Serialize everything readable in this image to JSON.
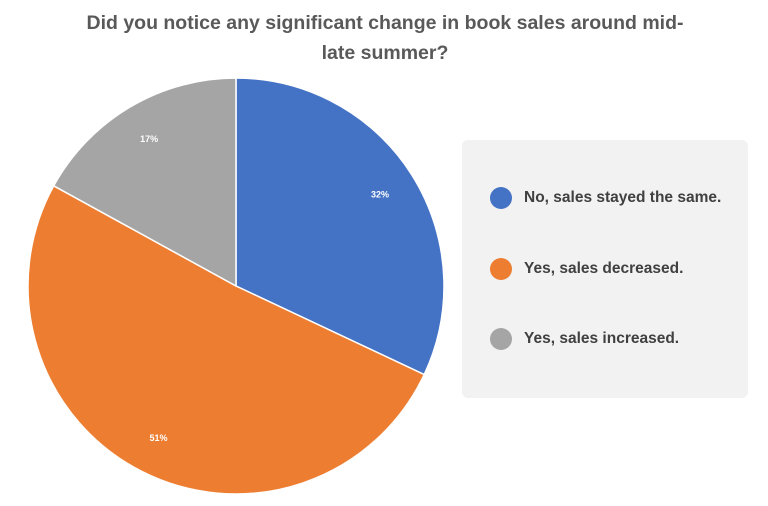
{
  "chart_data": {
    "type": "pie",
    "title_lines": [
      "Did you notice any significant change in book sales around mid-",
      "late summer?"
    ],
    "slices": [
      {
        "label": "No, sales stayed the same.",
        "value": 32,
        "display": "32%",
        "color": "#4472C4"
      },
      {
        "label": "Yes, sales decreased.",
        "value": 51,
        "display": "51%",
        "color": "#ED7D31"
      },
      {
        "label": "Yes, sales increased.",
        "value": 17,
        "display": "17%",
        "color": "#A5A5A5"
      }
    ],
    "legend_position": "right"
  }
}
